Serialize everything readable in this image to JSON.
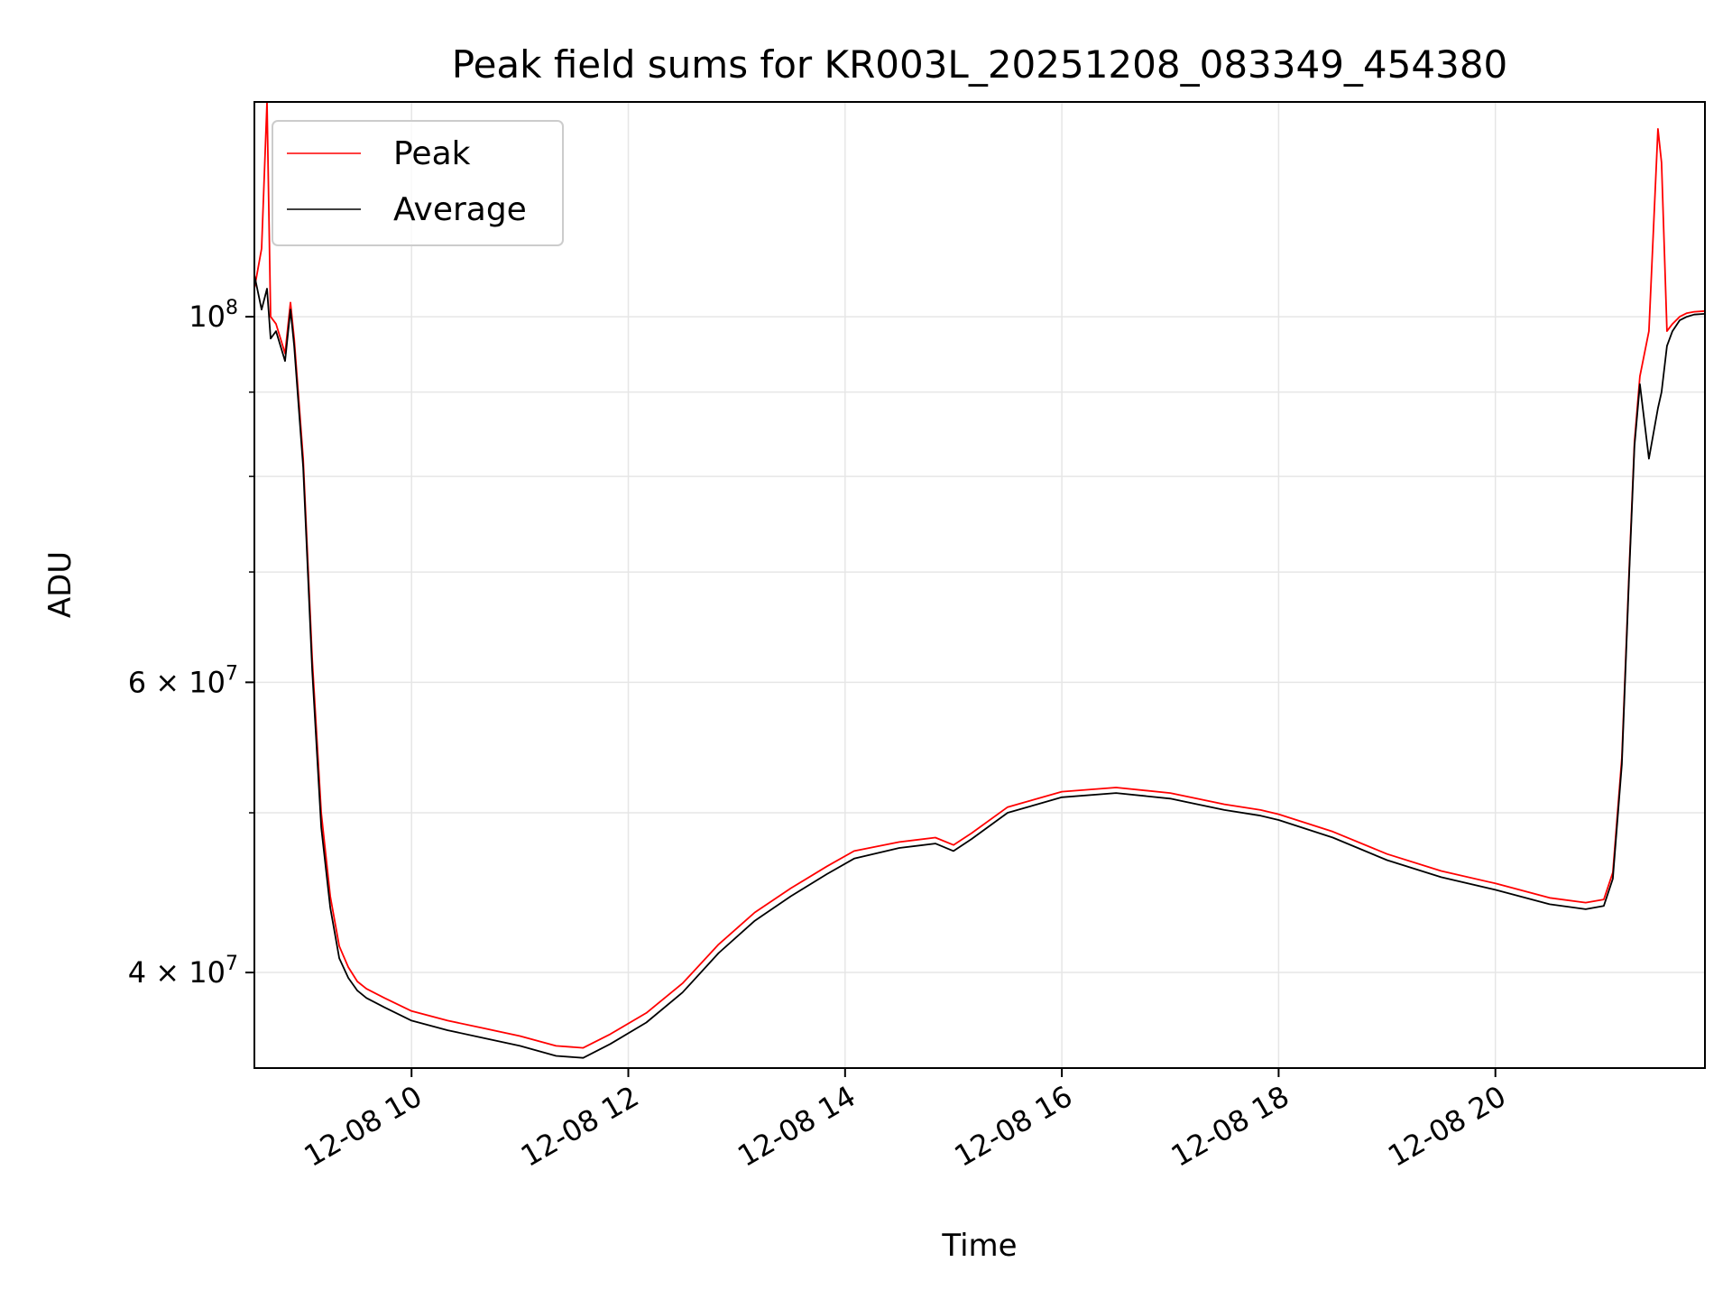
{
  "chart_data": {
    "type": "line",
    "title": "Peak field sums for KR003L_20251208_083349_454380",
    "xlabel": "Time",
    "ylabel": "ADU",
    "yscale": "log",
    "xlim": [
      "2025-12-08 08:33",
      "2025-12-08 21:56"
    ],
    "ylim": [
      35000000,
      135000000
    ],
    "grid": true,
    "legend_position": "upper left",
    "x_ticks": [
      {
        "value": "2025-12-08 10:00",
        "label": "12-08 10"
      },
      {
        "value": "2025-12-08 12:00",
        "label": "12-08 12"
      },
      {
        "value": "2025-12-08 14:00",
        "label": "12-08 14"
      },
      {
        "value": "2025-12-08 16:00",
        "label": "12-08 16"
      },
      {
        "value": "2025-12-08 18:00",
        "label": "12-08 18"
      },
      {
        "value": "2025-12-08 20:00",
        "label": "12-08 20"
      }
    ],
    "y_ticks": [
      {
        "value": 40000000,
        "base": "4",
        "exponent": "7",
        "kind": "mantissa"
      },
      {
        "value": 60000000,
        "base": "6",
        "exponent": "7",
        "kind": "mantissa"
      },
      {
        "value": 100000000,
        "base": "10",
        "exponent": "8",
        "kind": "power"
      }
    ],
    "y_minor_ticks": [
      50000000,
      70000000,
      80000000,
      90000000
    ],
    "series": [
      {
        "name": "Peak",
        "color": "#ff0000",
        "x": [
          "2025-12-08 08:33",
          "2025-12-08 08:37",
          "2025-12-08 08:40",
          "2025-12-08 08:42",
          "2025-12-08 08:45",
          "2025-12-08 08:50",
          "2025-12-08 08:53",
          "2025-12-08 08:55",
          "2025-12-08 09:00",
          "2025-12-08 09:05",
          "2025-12-08 09:10",
          "2025-12-08 09:15",
          "2025-12-08 09:20",
          "2025-12-08 09:25",
          "2025-12-08 09:30",
          "2025-12-08 09:35",
          "2025-12-08 09:45",
          "2025-12-08 10:00",
          "2025-12-08 10:20",
          "2025-12-08 10:40",
          "2025-12-08 11:00",
          "2025-12-08 11:20",
          "2025-12-08 11:35",
          "2025-12-08 11:50",
          "2025-12-08 12:10",
          "2025-12-08 12:30",
          "2025-12-08 12:50",
          "2025-12-08 13:10",
          "2025-12-08 13:30",
          "2025-12-08 13:50",
          "2025-12-08 14:05",
          "2025-12-08 14:30",
          "2025-12-08 14:50",
          "2025-12-08 15:00",
          "2025-12-08 15:10",
          "2025-12-08 15:30",
          "2025-12-08 16:00",
          "2025-12-08 16:30",
          "2025-12-08 17:00",
          "2025-12-08 17:30",
          "2025-12-08 17:50",
          "2025-12-08 18:00",
          "2025-12-08 18:30",
          "2025-12-08 19:00",
          "2025-12-08 19:30",
          "2025-12-08 20:00",
          "2025-12-08 20:30",
          "2025-12-08 20:50",
          "2025-12-08 21:00",
          "2025-12-08 21:05",
          "2025-12-08 21:10",
          "2025-12-08 21:14",
          "2025-12-08 21:17",
          "2025-12-08 21:20",
          "2025-12-08 21:25",
          "2025-12-08 21:30",
          "2025-12-08 21:32",
          "2025-12-08 21:35",
          "2025-12-08 21:38",
          "2025-12-08 21:42",
          "2025-12-08 21:46",
          "2025-12-08 21:50",
          "2025-12-08 21:56"
        ],
        "y": [
          104000000,
          110000000,
          135000000,
          100000000,
          99000000,
          95000000,
          102000000,
          97000000,
          82000000,
          62000000,
          50000000,
          44500000,
          41500000,
          40300000,
          39500000,
          39100000,
          38600000,
          37900000,
          37400000,
          37000000,
          36600000,
          36100000,
          36000000,
          36700000,
          37800000,
          39400000,
          41600000,
          43500000,
          45000000,
          46400000,
          47400000,
          48000000,
          48300000,
          47800000,
          48600000,
          50400000,
          51500000,
          51800000,
          51400000,
          50600000,
          50200000,
          49900000,
          48700000,
          47200000,
          46100000,
          45300000,
          44400000,
          44100000,
          44300000,
          46000000,
          54000000,
          70000000,
          84000000,
          92000000,
          98000000,
          130000000,
          124000000,
          98000000,
          99000000,
          100000000,
          100500000,
          100700000,
          100800000
        ]
      },
      {
        "name": "Average",
        "color": "#000000",
        "x": [
          "2025-12-08 08:33",
          "2025-12-08 08:37",
          "2025-12-08 08:40",
          "2025-12-08 08:42",
          "2025-12-08 08:45",
          "2025-12-08 08:50",
          "2025-12-08 08:53",
          "2025-12-08 08:55",
          "2025-12-08 09:00",
          "2025-12-08 09:05",
          "2025-12-08 09:10",
          "2025-12-08 09:15",
          "2025-12-08 09:20",
          "2025-12-08 09:25",
          "2025-12-08 09:30",
          "2025-12-08 09:35",
          "2025-12-08 09:45",
          "2025-12-08 10:00",
          "2025-12-08 10:20",
          "2025-12-08 10:40",
          "2025-12-08 11:00",
          "2025-12-08 11:20",
          "2025-12-08 11:35",
          "2025-12-08 11:50",
          "2025-12-08 12:10",
          "2025-12-08 12:30",
          "2025-12-08 12:50",
          "2025-12-08 13:10",
          "2025-12-08 13:30",
          "2025-12-08 13:50",
          "2025-12-08 14:05",
          "2025-12-08 14:30",
          "2025-12-08 14:50",
          "2025-12-08 15:00",
          "2025-12-08 15:10",
          "2025-12-08 15:30",
          "2025-12-08 16:00",
          "2025-12-08 16:30",
          "2025-12-08 17:00",
          "2025-12-08 17:30",
          "2025-12-08 17:50",
          "2025-12-08 18:00",
          "2025-12-08 18:30",
          "2025-12-08 19:00",
          "2025-12-08 19:30",
          "2025-12-08 20:00",
          "2025-12-08 20:30",
          "2025-12-08 20:50",
          "2025-12-08 21:00",
          "2025-12-08 21:05",
          "2025-12-08 21:10",
          "2025-12-08 21:14",
          "2025-12-08 21:17",
          "2025-12-08 21:20",
          "2025-12-08 21:25",
          "2025-12-08 21:30",
          "2025-12-08 21:32",
          "2025-12-08 21:35",
          "2025-12-08 21:38",
          "2025-12-08 21:42",
          "2025-12-08 21:46",
          "2025-12-08 21:50",
          "2025-12-08 21:56"
        ],
        "y": [
          106000000,
          101000000,
          104000000,
          97000000,
          98000000,
          94000000,
          101000000,
          96000000,
          81000000,
          61000000,
          49000000,
          43800000,
          40800000,
          39700000,
          39000000,
          38600000,
          38100000,
          37400000,
          36900000,
          36500000,
          36100000,
          35600000,
          35500000,
          36200000,
          37300000,
          38900000,
          41100000,
          43000000,
          44500000,
          45900000,
          46900000,
          47600000,
          47900000,
          47400000,
          48200000,
          50000000,
          51100000,
          51400000,
          51000000,
          50200000,
          49800000,
          49500000,
          48300000,
          46800000,
          45700000,
          44900000,
          44000000,
          43700000,
          43900000,
          45600000,
          53500000,
          69500000,
          83500000,
          91000000,
          82000000,
          88000000,
          90000000,
          96000000,
          98000000,
          99500000,
          100000000,
          100300000,
          100400000
        ]
      }
    ]
  }
}
